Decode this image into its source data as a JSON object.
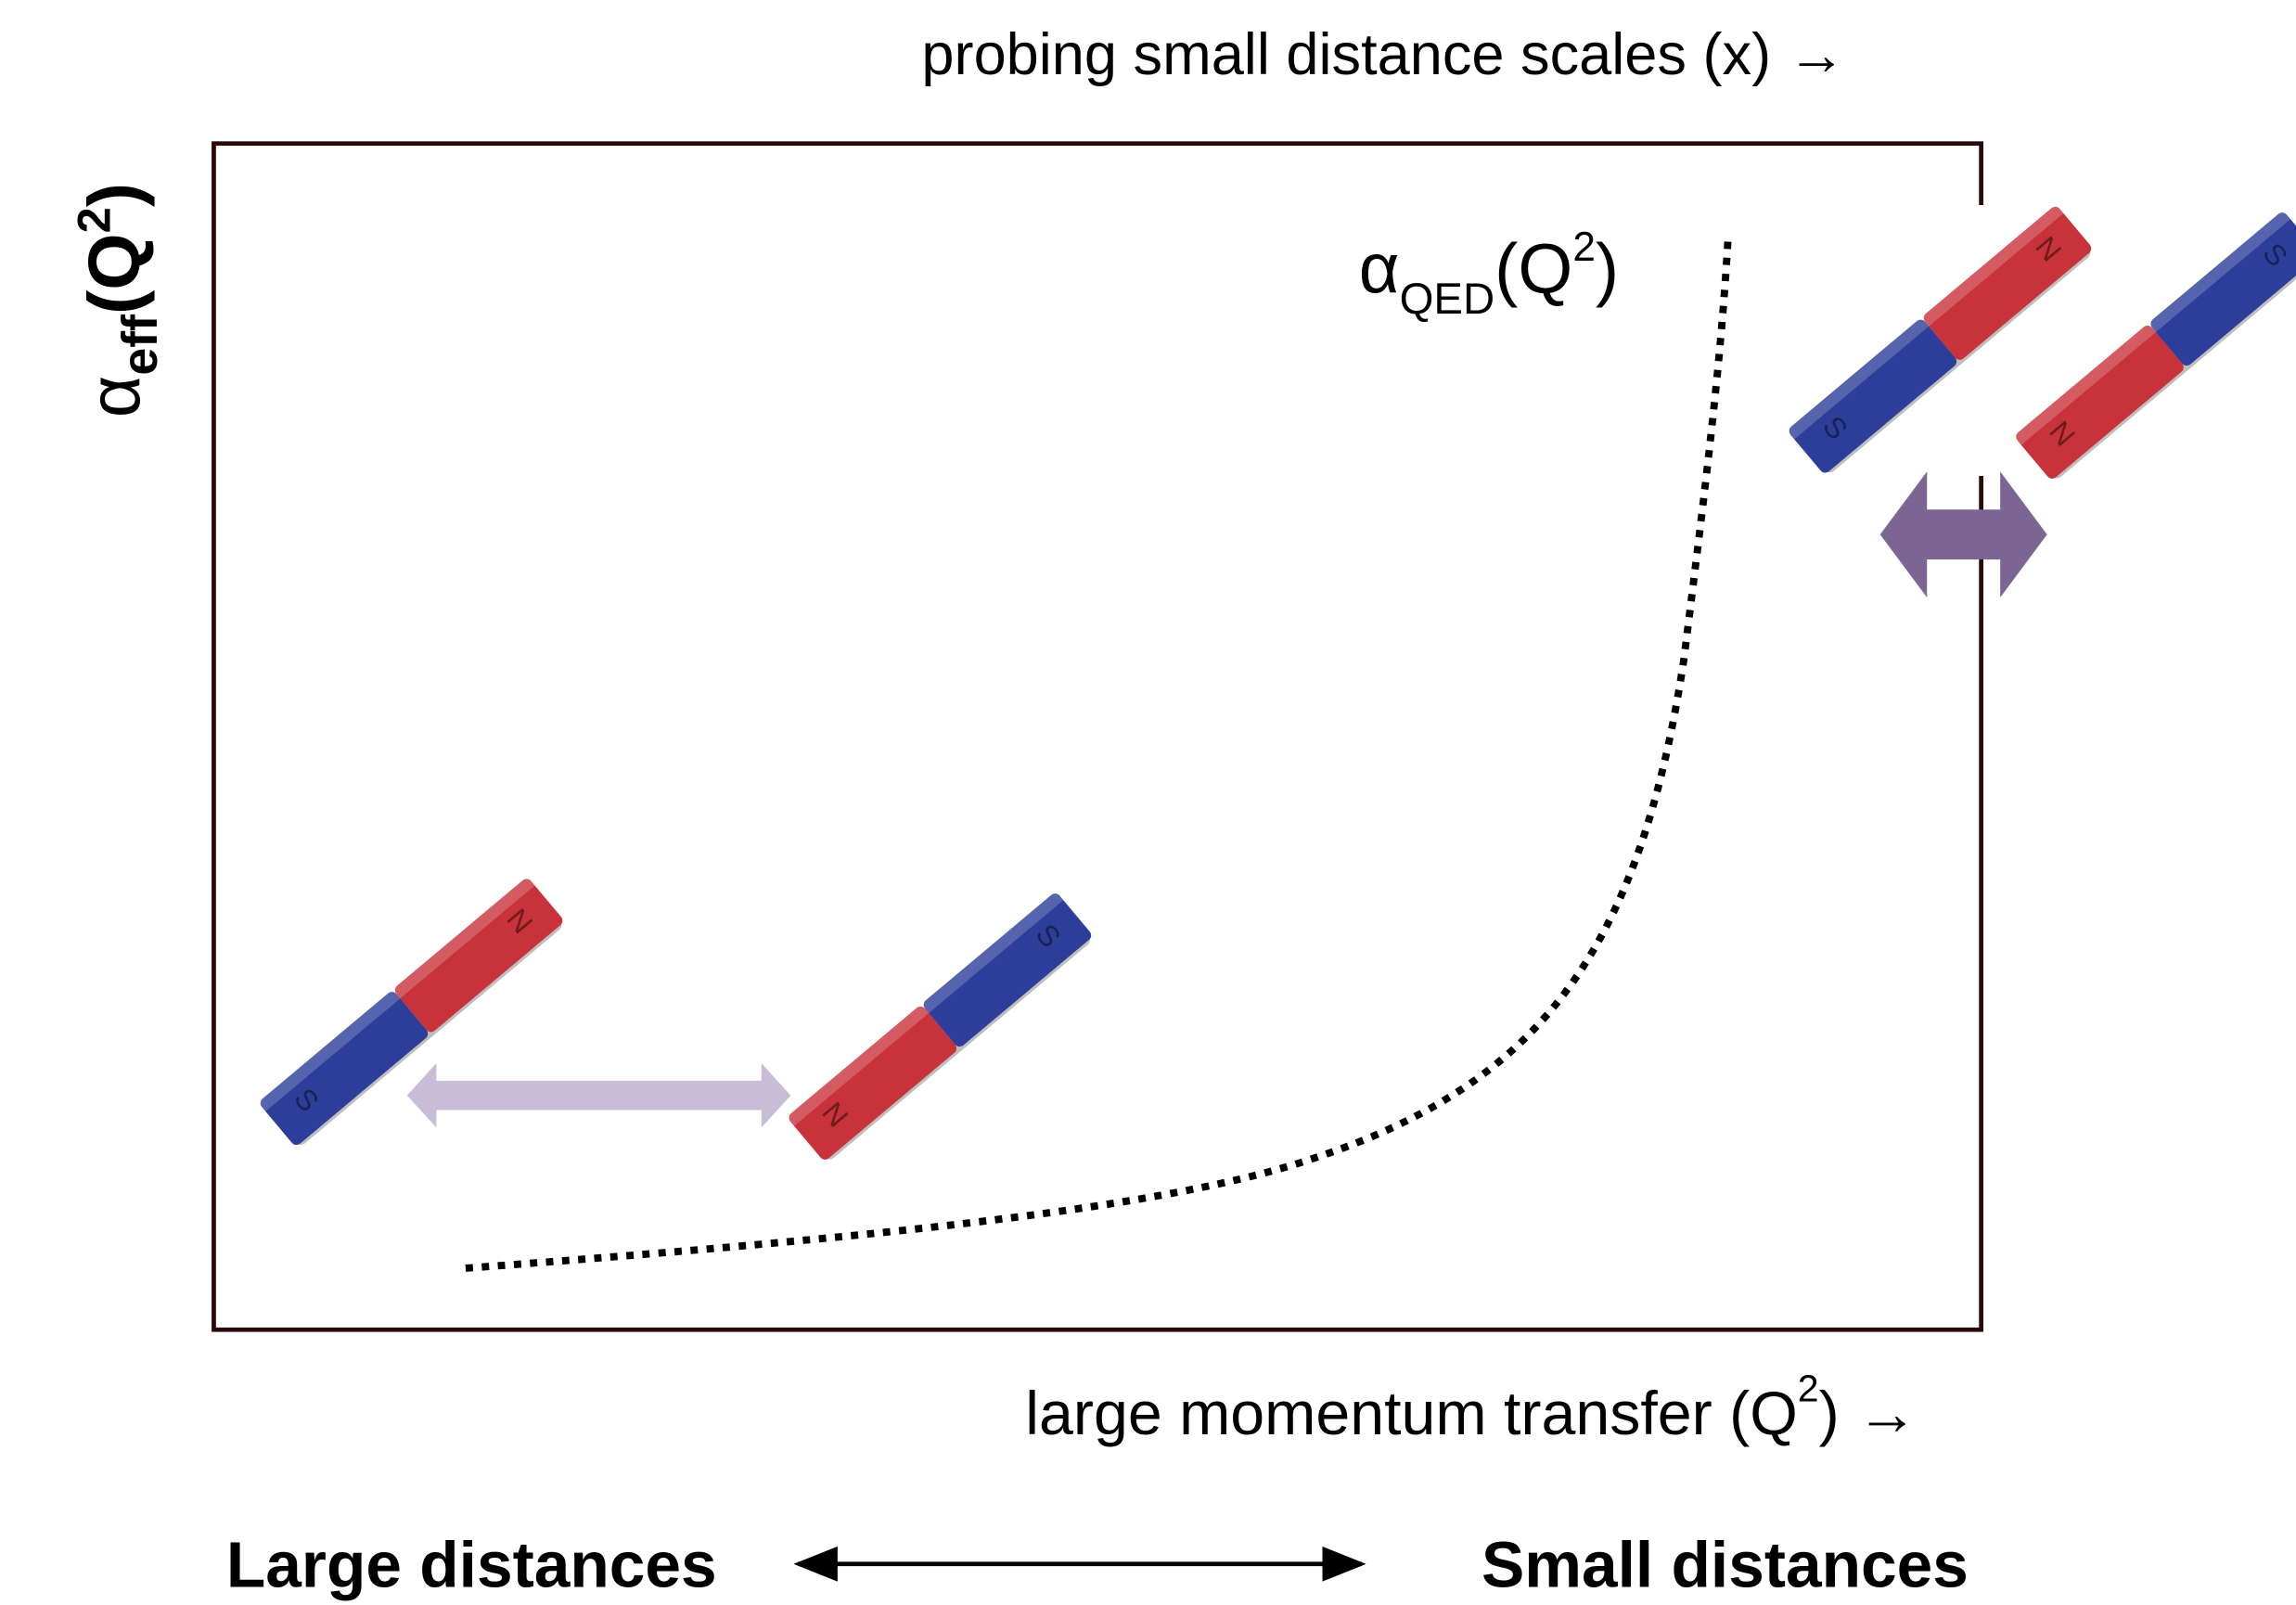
{
  "top_axis_label": "probing small distance scales (x) →",
  "y_label": {
    "symbol": "α",
    "subscript": "eff",
    "argument": "(Q",
    "superscript": "2",
    "close": ")"
  },
  "curve_label": {
    "symbol": "α",
    "subscript": "QED",
    "argument": "(Q",
    "superscript": "2",
    "close": ")"
  },
  "bottom_axis_label": {
    "text": "large momentum transfer (Q",
    "superscript": "2",
    "close": ") →"
  },
  "footer": {
    "left": "Large distances",
    "right": "Small distances"
  },
  "magnets": [
    {
      "south": "S",
      "north": "N"
    },
    {
      "south": "S",
      "north": "N"
    },
    {
      "south": "S",
      "north": "N"
    },
    {
      "south": "S",
      "north": "N"
    }
  ]
}
